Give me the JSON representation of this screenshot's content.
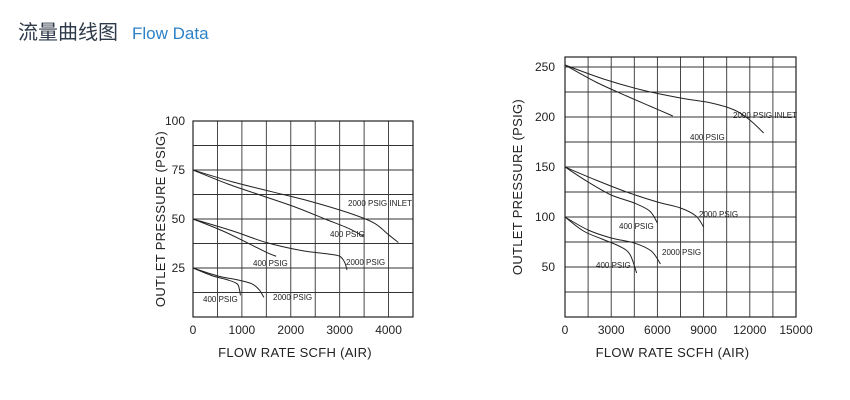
{
  "header": {
    "title_cn": "流量曲线图",
    "title_en": "Flow Data"
  },
  "chart_data": [
    {
      "type": "line",
      "xlabel": "FLOW  RATE SCFH (AIR)",
      "ylabel": "OUTLET  PRESSURE (PSIG)",
      "xlim": [
        0,
        4500
      ],
      "ylim": [
        0,
        100
      ],
      "xticks": [
        0,
        1000,
        2000,
        3000,
        4000
      ],
      "xtick_labels": [
        "0",
        "1000",
        "2000",
        "3000",
        "4000"
      ],
      "yticks": [
        25,
        50,
        75,
        100
      ],
      "ytick_labels": [
        "25",
        "50",
        "75",
        "100"
      ],
      "x_grid_step": 500,
      "y_grid_step": 12.5,
      "grid": true,
      "series": [
        {
          "name": "2000 PSIG INLET",
          "points": [
            [
              0,
              75
            ],
            [
              800,
              69
            ],
            [
              1600,
              64
            ],
            [
              2400,
              59
            ],
            [
              3200,
              53
            ],
            [
              3700,
              48
            ],
            [
              4000,
              42
            ],
            [
              4200,
              38
            ]
          ]
        },
        {
          "name": "400 PSIG",
          "points": [
            [
              0,
              75
            ],
            [
              700,
              68
            ],
            [
              1400,
              62
            ],
            [
              2100,
              56
            ],
            [
              2700,
              50
            ],
            [
              3200,
              45
            ],
            [
              3500,
              41
            ]
          ]
        },
        {
          "name": "2000 PSIG",
          "points": [
            [
              0,
              50
            ],
            [
              800,
              44
            ],
            [
              1500,
              38
            ],
            [
              2200,
              34
            ],
            [
              2800,
              32
            ],
            [
              3000,
              31
            ],
            [
              3100,
              28
            ],
            [
              3150,
              24
            ]
          ]
        },
        {
          "name": "400 PSIG",
          "points": [
            [
              0,
              50
            ],
            [
              600,
              44
            ],
            [
              1100,
              38
            ],
            [
              1500,
              33
            ],
            [
              1700,
              31
            ]
          ]
        },
        {
          "name": "2000 PSIG",
          "points": [
            [
              0,
              25
            ],
            [
              500,
              21
            ],
            [
              900,
              19
            ],
            [
              1200,
              17
            ],
            [
              1350,
              14
            ],
            [
              1450,
              10
            ]
          ]
        },
        {
          "name": "400 PSIG",
          "points": [
            [
              0,
              25
            ],
            [
              400,
              21
            ],
            [
              700,
              19
            ],
            [
              900,
              17
            ],
            [
              950,
              14
            ],
            [
              970,
              11
            ]
          ]
        }
      ],
      "series_labels": [
        "2000 PSIG INLET",
        "400 PSIG",
        "2000 PSIG",
        "400 PSIG",
        "2000 PSIG",
        "400 PSIG"
      ]
    },
    {
      "type": "line",
      "xlabel": "FLOW  RATE SCFH (AIR)",
      "ylabel": "OUTLET  PRESSURE (PSIG)",
      "xlim": [
        0,
        15000
      ],
      "ylim": [
        0,
        260
      ],
      "xticks": [
        0,
        3000,
        6000,
        9000,
        12000,
        15000
      ],
      "xtick_labels": [
        "0",
        "3000",
        "6000",
        "9000",
        "12000",
        "15000"
      ],
      "yticks": [
        50,
        100,
        150,
        200,
        250
      ],
      "ytick_labels": [
        "50",
        "100",
        "150",
        "200",
        "250"
      ],
      "x_grid_step": 1500,
      "y_grid_step": 25,
      "grid": true,
      "series": [
        {
          "name": "2000 PSIG INLET",
          "points": [
            [
              0,
              252
            ],
            [
              2500,
              238
            ],
            [
              5000,
              227
            ],
            [
              7500,
              219
            ],
            [
              9500,
              214
            ],
            [
              11000,
              207
            ],
            [
              12000,
              197
            ],
            [
              12900,
              184
            ]
          ]
        },
        {
          "name": "400 PSIG",
          "points": [
            [
              0,
              252
            ],
            [
              2000,
              235
            ],
            [
              4000,
              221
            ],
            [
              5500,
              211
            ],
            [
              7000,
              201
            ]
          ]
        },
        {
          "name": "2000 PSIG",
          "points": [
            [
              0,
              150
            ],
            [
              2000,
              137
            ],
            [
              4000,
              125
            ],
            [
              6000,
              115
            ],
            [
              7500,
              109
            ],
            [
              8500,
              101
            ],
            [
              9000,
              90
            ]
          ]
        },
        {
          "name": "400 PSIG",
          "points": [
            [
              0,
              150
            ],
            [
              1500,
              135
            ],
            [
              3000,
              122
            ],
            [
              4500,
              114
            ],
            [
              5500,
              106
            ],
            [
              6000,
              94
            ]
          ]
        },
        {
          "name": "2000 PSIG",
          "points": [
            [
              0,
              100
            ],
            [
              1500,
              87
            ],
            [
              3000,
              79
            ],
            [
              4500,
              74
            ],
            [
              5600,
              66
            ],
            [
              6200,
              53
            ]
          ]
        },
        {
          "name": "400 PSIG",
          "points": [
            [
              0,
              100
            ],
            [
              1200,
              86
            ],
            [
              2400,
              78
            ],
            [
              3500,
              71
            ],
            [
              4200,
              63
            ],
            [
              4650,
              44
            ]
          ]
        }
      ],
      "series_labels": [
        "2000 PSIG INLET",
        "400 PSIG",
        "2000 PSIG",
        "400 PSIG",
        "2000 PSIG",
        "400 PSIG"
      ]
    }
  ]
}
